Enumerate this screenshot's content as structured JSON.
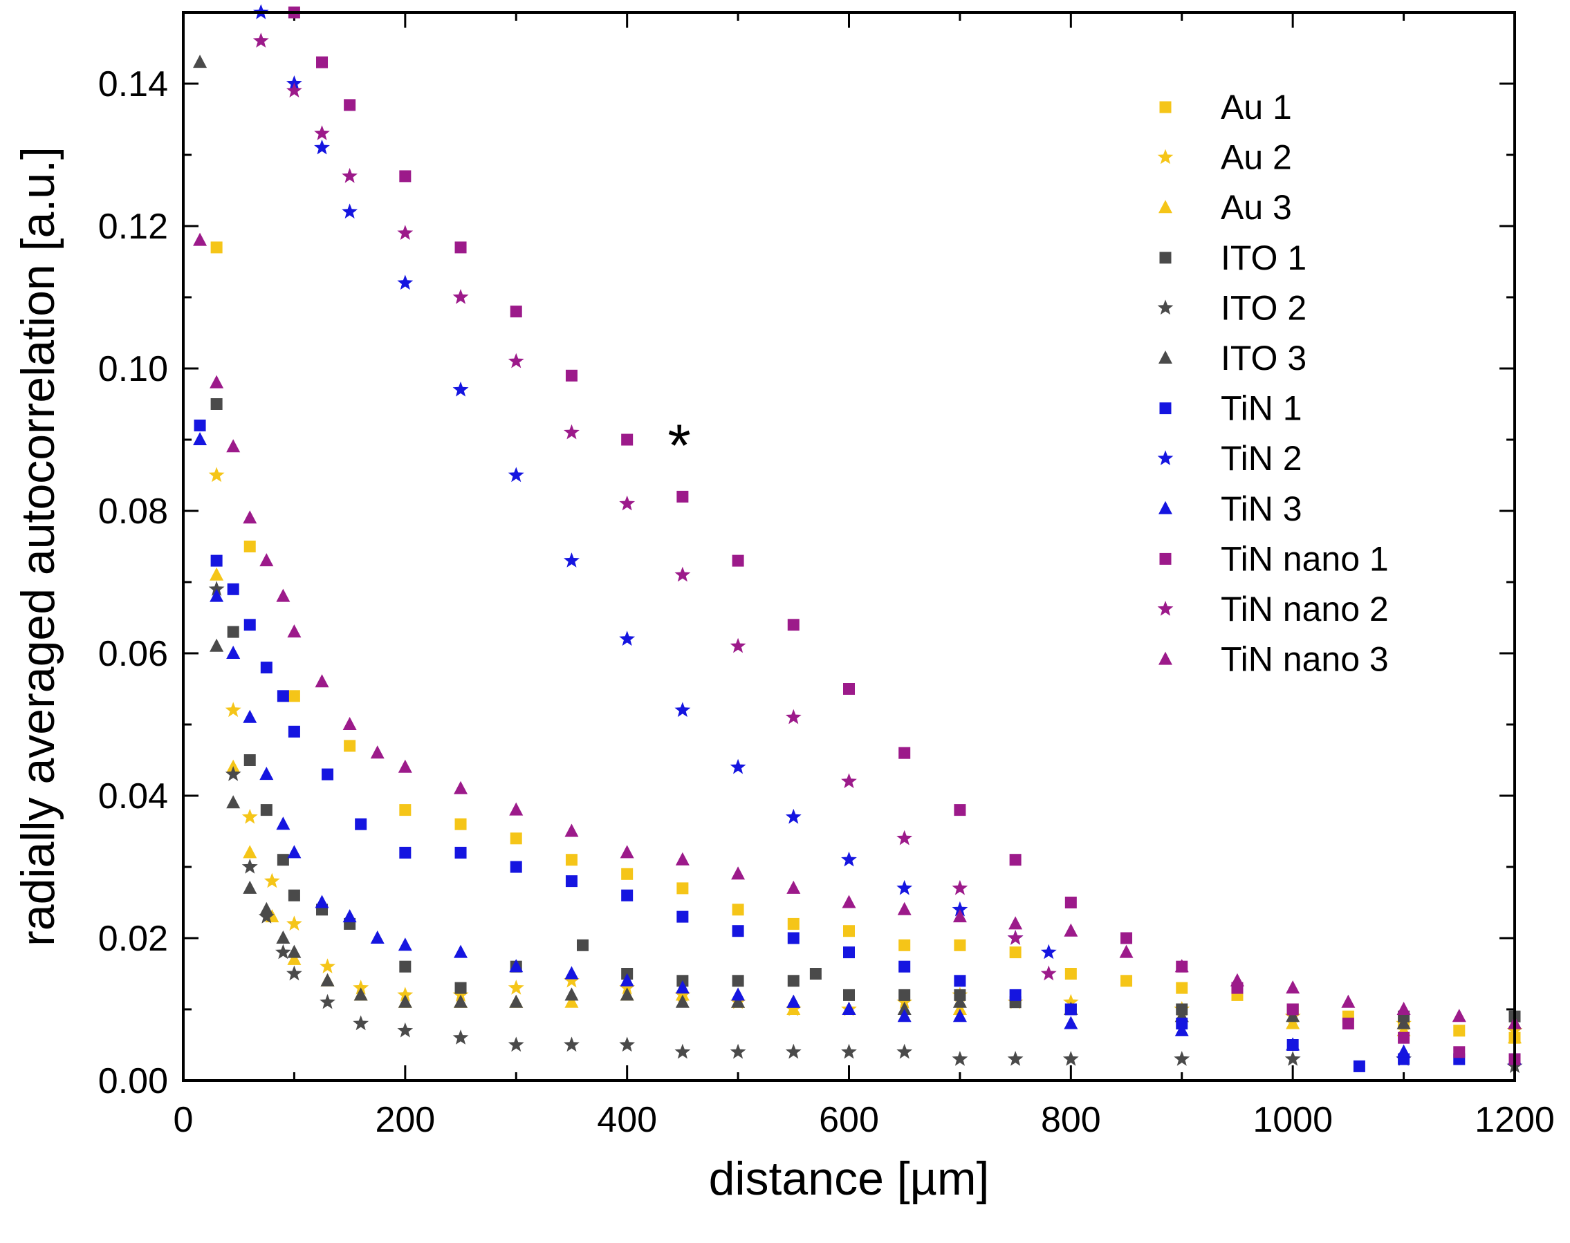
{
  "chart_data": {
    "type": "scatter",
    "xlabel": "distance [µm]",
    "ylabel": "radially averaged autocorrelation [a.u.]",
    "xlim": [
      0,
      1200
    ],
    "ylim": [
      0,
      0.15
    ],
    "x_ticks": [
      0,
      200,
      400,
      600,
      800,
      1000,
      1200
    ],
    "x_tick_labels": [
      "0",
      "200",
      "400",
      "600",
      "800",
      "1000",
      "1200"
    ],
    "y_ticks": [
      0,
      0.02,
      0.04,
      0.06,
      0.08,
      0.1,
      0.12,
      0.14
    ],
    "y_tick_labels": [
      "0.00",
      "0.02",
      "0.04",
      "0.06",
      "0.08",
      "0.10",
      "0.12",
      "0.14"
    ],
    "grid": false,
    "legend_position": "top-right",
    "annotations": [
      {
        "text": "*",
        "x": 447,
        "y": 0.09
      }
    ],
    "series": [
      {
        "name": "Au 1",
        "color": "#f5c518",
        "marker": "square",
        "x": [
          30,
          60,
          100,
          150,
          200,
          250,
          300,
          350,
          400,
          450,
          500,
          550,
          600,
          650,
          700,
          750,
          800,
          850,
          900,
          950,
          1000,
          1050,
          1100,
          1150,
          1200
        ],
        "y": [
          0.117,
          0.075,
          0.054,
          0.047,
          0.038,
          0.036,
          0.034,
          0.031,
          0.029,
          0.027,
          0.024,
          0.022,
          0.021,
          0.019,
          0.019,
          0.018,
          0.015,
          0.014,
          0.013,
          0.012,
          0.01,
          0.009,
          0.008,
          0.007,
          0.006
        ]
      },
      {
        "name": "Au 2",
        "color": "#f5c518",
        "marker": "star",
        "x": [
          30,
          45,
          60,
          80,
          100,
          130,
          160,
          200,
          250,
          300,
          350,
          400,
          450,
          500,
          550,
          600,
          650,
          700,
          750,
          800,
          900,
          1000,
          1100,
          1200
        ],
        "y": [
          0.085,
          0.052,
          0.037,
          0.028,
          0.022,
          0.016,
          0.013,
          0.012,
          0.012,
          0.013,
          0.014,
          0.013,
          0.012,
          0.011,
          0.01,
          0.01,
          0.011,
          0.012,
          0.011,
          0.011,
          0.01,
          0.009,
          0.008,
          0.007
        ]
      },
      {
        "name": "Au 3",
        "color": "#f5c518",
        "marker": "triangle",
        "x": [
          30,
          45,
          60,
          80,
          100,
          130,
          160,
          200,
          250,
          300,
          350,
          400,
          450,
          500,
          550,
          600,
          700,
          800,
          900,
          1000,
          1100,
          1200
        ],
        "y": [
          0.071,
          0.044,
          0.032,
          0.023,
          0.017,
          0.014,
          0.012,
          0.011,
          0.011,
          0.011,
          0.011,
          0.012,
          0.012,
          0.011,
          0.01,
          0.01,
          0.01,
          0.01,
          0.009,
          0.008,
          0.007,
          0.006
        ]
      },
      {
        "name": "ITO 1",
        "color": "#4a4a4a",
        "marker": "square",
        "x": [
          30,
          45,
          60,
          75,
          90,
          100,
          125,
          150,
          200,
          250,
          300,
          360,
          400,
          450,
          500,
          550,
          570,
          600,
          650,
          700,
          750,
          800,
          900,
          1000,
          1100,
          1200
        ],
        "y": [
          0.095,
          0.063,
          0.045,
          0.038,
          0.031,
          0.026,
          0.024,
          0.022,
          0.016,
          0.013,
          0.016,
          0.019,
          0.015,
          0.014,
          0.014,
          0.014,
          0.015,
          0.012,
          0.012,
          0.012,
          0.011,
          0.01,
          0.01,
          0.01,
          0.009,
          0.009
        ]
      },
      {
        "name": "ITO 2",
        "color": "#4a4a4a",
        "marker": "star",
        "x": [
          30,
          45,
          60,
          75,
          90,
          100,
          130,
          160,
          200,
          250,
          300,
          350,
          400,
          450,
          500,
          550,
          600,
          650,
          700,
          750,
          800,
          900,
          1000,
          1100,
          1200
        ],
        "y": [
          0.069,
          0.043,
          0.03,
          0.023,
          0.018,
          0.015,
          0.011,
          0.008,
          0.007,
          0.006,
          0.005,
          0.005,
          0.005,
          0.004,
          0.004,
          0.004,
          0.004,
          0.004,
          0.003,
          0.003,
          0.003,
          0.003,
          0.003,
          0.003,
          0.002
        ]
      },
      {
        "name": "ITO 3",
        "color": "#4a4a4a",
        "marker": "triangle",
        "x": [
          15,
          30,
          45,
          60,
          75,
          90,
          100,
          130,
          160,
          200,
          250,
          300,
          350,
          400,
          450,
          500,
          550,
          600,
          650,
          700,
          800,
          900,
          1000,
          1100,
          1200
        ],
        "y": [
          0.143,
          0.061,
          0.039,
          0.027,
          0.024,
          0.02,
          0.018,
          0.014,
          0.012,
          0.011,
          0.011,
          0.011,
          0.012,
          0.012,
          0.011,
          0.011,
          0.011,
          0.01,
          0.01,
          0.011,
          0.01,
          0.009,
          0.009,
          0.008,
          0.008
        ]
      },
      {
        "name": "TiN 1",
        "color": "#1515e0",
        "marker": "square",
        "x": [
          15,
          30,
          45,
          60,
          75,
          90,
          100,
          130,
          160,
          200,
          250,
          300,
          350,
          400,
          450,
          500,
          550,
          600,
          650,
          700,
          750,
          800,
          900,
          1000,
          1060,
          1100,
          1150,
          1200
        ],
        "y": [
          0.092,
          0.073,
          0.069,
          0.064,
          0.058,
          0.054,
          0.049,
          0.043,
          0.036,
          0.032,
          0.032,
          0.03,
          0.028,
          0.026,
          0.023,
          0.021,
          0.02,
          0.018,
          0.016,
          0.014,
          0.012,
          0.01,
          0.008,
          0.005,
          0.002,
          0.003,
          0.003,
          0.003
        ]
      },
      {
        "name": "TiN 2",
        "color": "#1515e0",
        "marker": "star",
        "x": [
          70,
          100,
          125,
          150,
          200,
          250,
          300,
          350,
          400,
          450,
          500,
          550,
          600,
          650,
          700,
          750,
          780
        ],
        "y": [
          0.15,
          0.14,
          0.131,
          0.122,
          0.112,
          0.097,
          0.085,
          0.073,
          0.062,
          0.052,
          0.044,
          0.037,
          0.031,
          0.027,
          0.024,
          0.02,
          0.018
        ]
      },
      {
        "name": "TiN 3",
        "color": "#1515e0",
        "marker": "triangle",
        "x": [
          15,
          30,
          45,
          60,
          75,
          90,
          100,
          125,
          150,
          175,
          200,
          250,
          300,
          350,
          400,
          450,
          500,
          550,
          600,
          650,
          700,
          800,
          900,
          1000,
          1100,
          1200
        ],
        "y": [
          0.09,
          0.068,
          0.06,
          0.051,
          0.043,
          0.036,
          0.032,
          0.025,
          0.023,
          0.02,
          0.019,
          0.018,
          0.016,
          0.015,
          0.014,
          0.013,
          0.012,
          0.011,
          0.01,
          0.009,
          0.009,
          0.008,
          0.007,
          0.005,
          0.004,
          0.003
        ]
      },
      {
        "name": "TiN nano 1",
        "color": "#9c1a8a",
        "marker": "square",
        "x": [
          100,
          125,
          150,
          200,
          250,
          300,
          350,
          400,
          450,
          500,
          550,
          600,
          650,
          700,
          750,
          800,
          850,
          900,
          950,
          1000,
          1050,
          1100,
          1150,
          1200
        ],
        "y": [
          0.15,
          0.143,
          0.137,
          0.127,
          0.117,
          0.108,
          0.099,
          0.09,
          0.082,
          0.073,
          0.064,
          0.055,
          0.046,
          0.038,
          0.031,
          0.025,
          0.02,
          0.016,
          0.013,
          0.01,
          0.008,
          0.006,
          0.004,
          0.003
        ]
      },
      {
        "name": "TiN nano 2",
        "color": "#9c1a8a",
        "marker": "star",
        "x": [
          70,
          100,
          125,
          150,
          200,
          250,
          300,
          350,
          400,
          450,
          500,
          550,
          600,
          650,
          700,
          750,
          780
        ],
        "y": [
          0.146,
          0.139,
          0.133,
          0.127,
          0.119,
          0.11,
          0.101,
          0.091,
          0.081,
          0.071,
          0.061,
          0.051,
          0.042,
          0.034,
          0.027,
          0.02,
          0.015
        ]
      },
      {
        "name": "TiN nano 3",
        "color": "#9c1a8a",
        "marker": "triangle",
        "x": [
          15,
          30,
          45,
          60,
          75,
          90,
          100,
          125,
          150,
          175,
          200,
          250,
          300,
          350,
          400,
          450,
          500,
          550,
          600,
          650,
          700,
          750,
          800,
          850,
          900,
          950,
          1000,
          1050,
          1100,
          1150,
          1200
        ],
        "y": [
          0.118,
          0.098,
          0.089,
          0.079,
          0.073,
          0.068,
          0.063,
          0.056,
          0.05,
          0.046,
          0.044,
          0.041,
          0.038,
          0.035,
          0.032,
          0.031,
          0.029,
          0.027,
          0.025,
          0.024,
          0.023,
          0.022,
          0.021,
          0.018,
          0.016,
          0.014,
          0.013,
          0.011,
          0.01,
          0.009,
          0.008
        ]
      }
    ]
  }
}
